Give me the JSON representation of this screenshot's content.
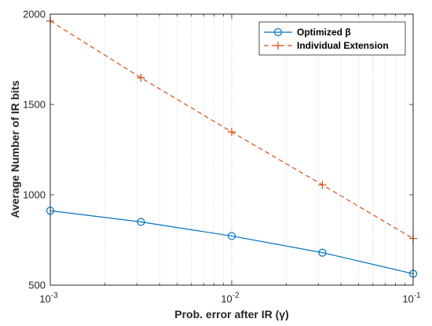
{
  "chart_data": {
    "type": "line",
    "xscale": "log",
    "xlim": [
      0.001,
      0.1
    ],
    "ylim": [
      500,
      2000
    ],
    "xlabel": "Prob. error after IR (γ)",
    "ylabel": "Average Number of IR bits",
    "x": [
      0.001,
      0.00316,
      0.01,
      0.0316,
      0.1
    ],
    "xticks": [
      {
        "value": 0.001,
        "base": "10",
        "exp": "-3"
      },
      {
        "value": 0.01,
        "base": "10",
        "exp": "-2"
      },
      {
        "value": 0.1,
        "base": "10",
        "exp": "-1"
      }
    ],
    "yticks": [
      500,
      1000,
      1500,
      2000
    ],
    "grid": "x-major-minor-dotted",
    "legend_position": "top-right",
    "series": [
      {
        "name": "Optimized β",
        "color": "#0072BD",
        "marker": "circle",
        "linestyle": "solid",
        "values": [
          912,
          850,
          772,
          680,
          563
        ]
      },
      {
        "name": "Individual Extension",
        "color": "#D95319",
        "marker": "plus",
        "linestyle": "dashed",
        "values": [
          1962,
          1648,
          1348,
          1055,
          758
        ]
      }
    ]
  }
}
